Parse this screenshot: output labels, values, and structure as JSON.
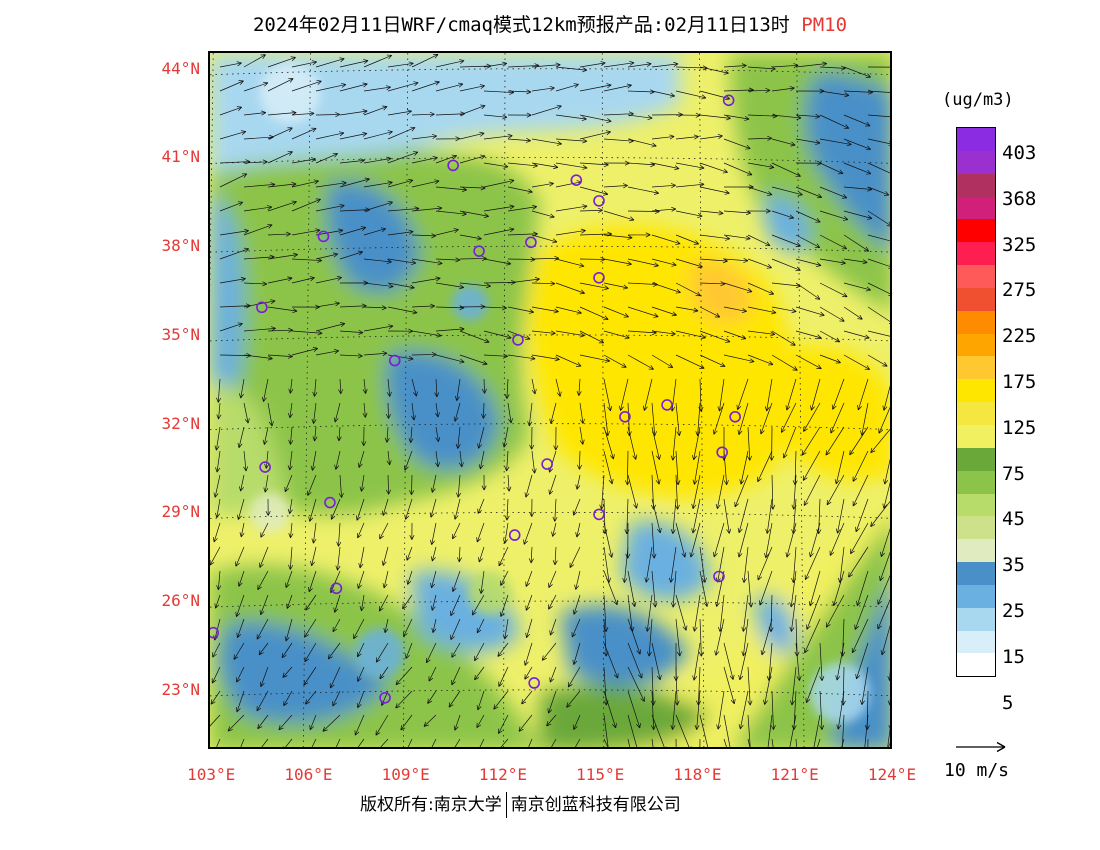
{
  "title": {
    "main": "2024年02月11日WRF/cmaq模式12km预报产品:02月11日13时",
    "pollutant": "PM10"
  },
  "map": {
    "lat_labels": [
      "44°N",
      "41°N",
      "38°N",
      "35°N",
      "32°N",
      "29°N",
      "26°N",
      "23°N"
    ],
    "lon_labels": [
      "103°E",
      "106°E",
      "109°E",
      "112°E",
      "115°E",
      "118°E",
      "121°E",
      "124°E"
    ],
    "lat_range": [
      21,
      44.6
    ],
    "lon_range": [
      102.9,
      124
    ],
    "stations": [
      {
        "lon": 118.9,
        "lat": 43.0
      },
      {
        "lon": 110.4,
        "lat": 40.8
      },
      {
        "lon": 114.2,
        "lat": 40.3
      },
      {
        "lon": 114.9,
        "lat": 39.6
      },
      {
        "lon": 106.4,
        "lat": 38.4
      },
      {
        "lon": 111.2,
        "lat": 37.9
      },
      {
        "lon": 112.8,
        "lat": 38.2
      },
      {
        "lon": 114.9,
        "lat": 37.0
      },
      {
        "lon": 104.5,
        "lat": 36.0
      },
      {
        "lon": 112.4,
        "lat": 34.9
      },
      {
        "lon": 108.6,
        "lat": 34.2
      },
      {
        "lon": 117.0,
        "lat": 32.7
      },
      {
        "lon": 115.7,
        "lat": 32.3
      },
      {
        "lon": 119.1,
        "lat": 32.3
      },
      {
        "lon": 118.7,
        "lat": 31.1
      },
      {
        "lon": 104.6,
        "lat": 30.6
      },
      {
        "lon": 113.3,
        "lat": 30.7
      },
      {
        "lon": 106.6,
        "lat": 29.4
      },
      {
        "lon": 114.9,
        "lat": 29.0
      },
      {
        "lon": 112.3,
        "lat": 28.3
      },
      {
        "lon": 106.8,
        "lat": 26.5
      },
      {
        "lon": 118.6,
        "lat": 26.9
      },
      {
        "lon": 103.0,
        "lat": 25.0
      },
      {
        "lon": 108.3,
        "lat": 22.8
      },
      {
        "lon": 112.9,
        "lat": 23.3
      }
    ]
  },
  "legend": {
    "unit": "(ug/m3)",
    "colors": [
      "#8b2be2",
      "#9b30d0",
      "#b03060",
      "#d0207a",
      "#ff0000",
      "#ff1e50",
      "#ff5a5a",
      "#f05030",
      "#ff8c00",
      "#ffa500",
      "#ffc830",
      "#ffe600",
      "#f5e640",
      "#f0f060",
      "#6aa83a",
      "#8cc44a",
      "#b8dc6a",
      "#cde08a",
      "#e0ecc0",
      "#4a90c8",
      "#6ab0e0",
      "#a8d8f0",
      "#d8eef8",
      "#ffffff"
    ],
    "ticks": [
      "403",
      "368",
      "325",
      "275",
      "225",
      "175",
      "125",
      "75",
      "45",
      "35",
      "25",
      "15",
      "5"
    ]
  },
  "wind_reference": {
    "label": "10 m/s"
  },
  "copyright": {
    "left": "版权所有:南京大学",
    "right": "南京创蓝科技有限公司"
  }
}
